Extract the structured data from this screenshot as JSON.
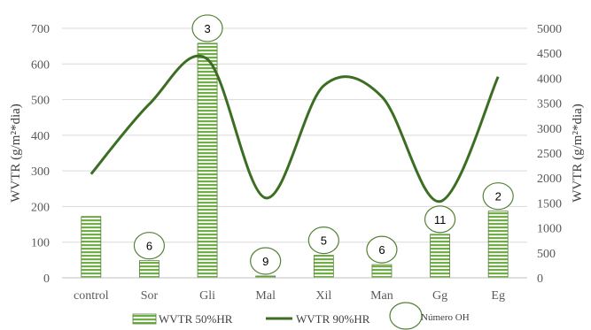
{
  "chart_data": {
    "type": "bar",
    "categories": [
      "control",
      "Sor",
      "Gli",
      "Mal",
      "Xil",
      "Man",
      "Gg",
      "Eg"
    ],
    "series": [
      {
        "name": "WVTR 50%HR",
        "type": "bar",
        "axis": "left",
        "values": [
          172,
          48,
          658,
          5,
          63,
          37,
          122,
          187
        ]
      },
      {
        "name": "WVTR 90%HR",
        "type": "line",
        "axis": "right",
        "values": [
          2080,
          3480,
          4380,
          1600,
          3850,
          3630,
          1530,
          4030
        ]
      },
      {
        "name": "Número OH",
        "type": "annotation",
        "values": [
          null,
          6,
          3,
          9,
          5,
          6,
          11,
          2
        ]
      }
    ],
    "ylabel": "WVTR (g/m²*dia)",
    "y2label": "WVTR (g/m²*dia)",
    "ylim": [
      0,
      700
    ],
    "y2lim": [
      0,
      5000
    ],
    "yticks": [
      "0",
      "100",
      "200",
      "300",
      "400",
      "500",
      "600",
      "700"
    ],
    "y2ticks": [
      "0",
      "500",
      "1000",
      "1500",
      "2000",
      "2500",
      "3000",
      "3500",
      "4000",
      "4500",
      "5000"
    ],
    "grid": true,
    "legend_position": "bottom",
    "colors": {
      "bar_fill": "#70AD47",
      "bar_stripe": "#ffffff",
      "bar_edge": "#548235",
      "line": "#3B6E22",
      "circle": "#548235",
      "grid": "#D9D9D9"
    }
  }
}
